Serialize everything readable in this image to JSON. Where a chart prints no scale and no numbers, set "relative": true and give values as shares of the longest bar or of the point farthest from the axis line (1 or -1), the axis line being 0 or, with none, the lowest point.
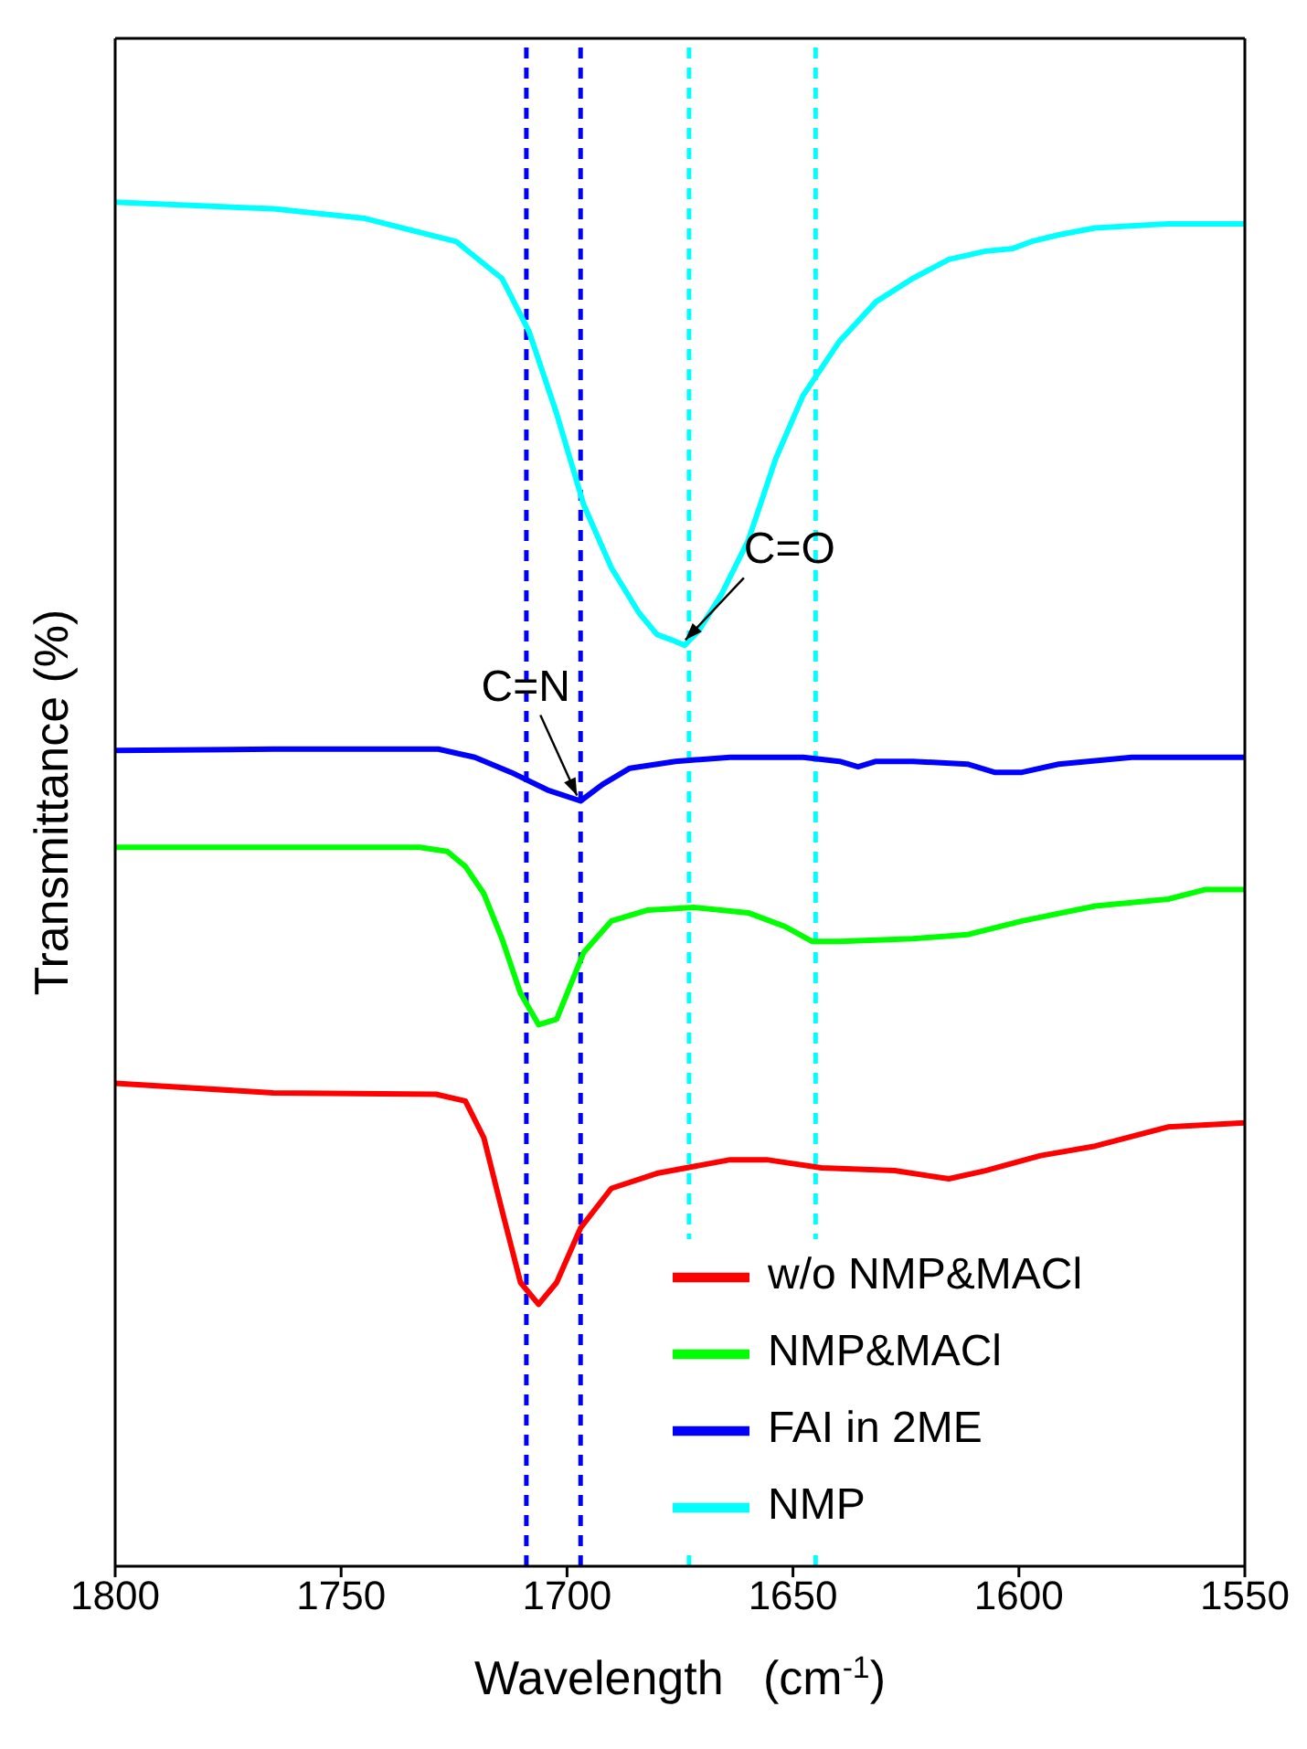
{
  "chart_data": {
    "type": "line",
    "relative": true,
    "xlabel": "Wavelength   (cm$^{-1}$)",
    "ylabel": "Transmittance (%)",
    "xlim": [
      1800,
      1550
    ],
    "xticks": [
      1800,
      1750,
      1700,
      1650,
      1600,
      1550
    ],
    "grid": false,
    "legend": "bottom right",
    "marker": "none",
    "line_style": "solid",
    "series": [
      {
        "name": "w/o NMP&MACl",
        "color": "#ff0000",
        "x": [
          1800,
          1765,
          1729,
          1722.5,
          1718.4,
          1714.4,
          1710.3,
          1706.3,
          1702.3,
          1697,
          1690.2,
          1680.1,
          1663.9,
          1655.8,
          1643.7,
          1627.5,
          1615.5,
          1607.4,
          1595.2,
          1583.1,
          1567,
          1550
        ],
        "values": [
          0.354,
          0.347,
          0.346,
          0.341,
          0.314,
          0.261,
          0.208,
          0.192,
          0.208,
          0.248,
          0.277,
          0.288,
          0.298,
          0.298,
          0.292,
          0.29,
          0.284,
          0.29,
          0.301,
          0.308,
          0.322,
          0.325
        ]
      },
      {
        "name": "NMP&MACl",
        "color": "#00ff00",
        "x": [
          1800,
          1765,
          1732.6,
          1726.5,
          1722.5,
          1718.4,
          1714.4,
          1710.3,
          1706.3,
          1702.3,
          1696.3,
          1690.2,
          1682.1,
          1672,
          1659.9,
          1651.8,
          1645.7,
          1639.7,
          1623.5,
          1611.4,
          1599.3,
          1583.1,
          1567,
          1558.9,
          1550
        ],
        "values": [
          0.527,
          0.527,
          0.527,
          0.524,
          0.513,
          0.493,
          0.46,
          0.42,
          0.397,
          0.401,
          0.45,
          0.473,
          0.481,
          0.483,
          0.479,
          0.469,
          0.458,
          0.458,
          0.46,
          0.463,
          0.473,
          0.484,
          0.489,
          0.496,
          0.496
        ]
      },
      {
        "name": "FAI in 2ME",
        "color": "#0000ff",
        "x": [
          1800,
          1765,
          1728.5,
          1720.4,
          1712.4,
          1704.3,
          1697,
          1692.2,
          1686.1,
          1676,
          1663.9,
          1647.7,
          1639.7,
          1635.6,
          1631.6,
          1623.5,
          1611.4,
          1605.4,
          1599.3,
          1591.2,
          1575,
          1550
        ],
        "values": [
          0.598,
          0.599,
          0.599,
          0.593,
          0.582,
          0.569,
          0.561,
          0.573,
          0.585,
          0.59,
          0.593,
          0.593,
          0.59,
          0.586,
          0.59,
          0.59,
          0.588,
          0.582,
          0.582,
          0.588,
          0.593,
          0.593
        ]
      },
      {
        "name": "NMP",
        "color": "#00ffff",
        "x": [
          1800,
          1764.9,
          1744.7,
          1724.5,
          1714.4,
          1708.4,
          1702.3,
          1696.3,
          1690.2,
          1684.1,
          1680.1,
          1676.8,
          1674,
          1670.8,
          1665.9,
          1659.9,
          1653.8,
          1647.8,
          1639.7,
          1631.6,
          1623.5,
          1615.5,
          1607.4,
          1601.3,
          1597.3,
          1591.2,
          1583.2,
          1567,
          1550
        ],
        "values": [
          1,
          0.995,
          0.988,
          0.971,
          0.944,
          0.905,
          0.845,
          0.778,
          0.732,
          0.699,
          0.683,
          0.679,
          0.675,
          0.686,
          0.712,
          0.752,
          0.812,
          0.858,
          0.898,
          0.927,
          0.944,
          0.958,
          0.964,
          0.966,
          0.971,
          0.976,
          0.981,
          0.984,
          0.984
        ]
      }
    ],
    "ref_lines": [
      {
        "axis": "x",
        "value": 1709,
        "color": "#0000ff",
        "line_style": "dashed"
      },
      {
        "axis": "x",
        "value": 1697,
        "color": "#0000ff",
        "line_style": "dashed"
      },
      {
        "axis": "x",
        "value": 1673,
        "color": "#00ffff",
        "line_style": "dashed"
      },
      {
        "axis": "x",
        "value": 1645,
        "color": "#00ffff",
        "line_style": "dashed"
      }
    ],
    "annotations": [
      {
        "text": "C=N",
        "x": 1697,
        "y": 0.561
      },
      {
        "text": "C=O",
        "x": 1673,
        "y": 0.675
      }
    ]
  }
}
